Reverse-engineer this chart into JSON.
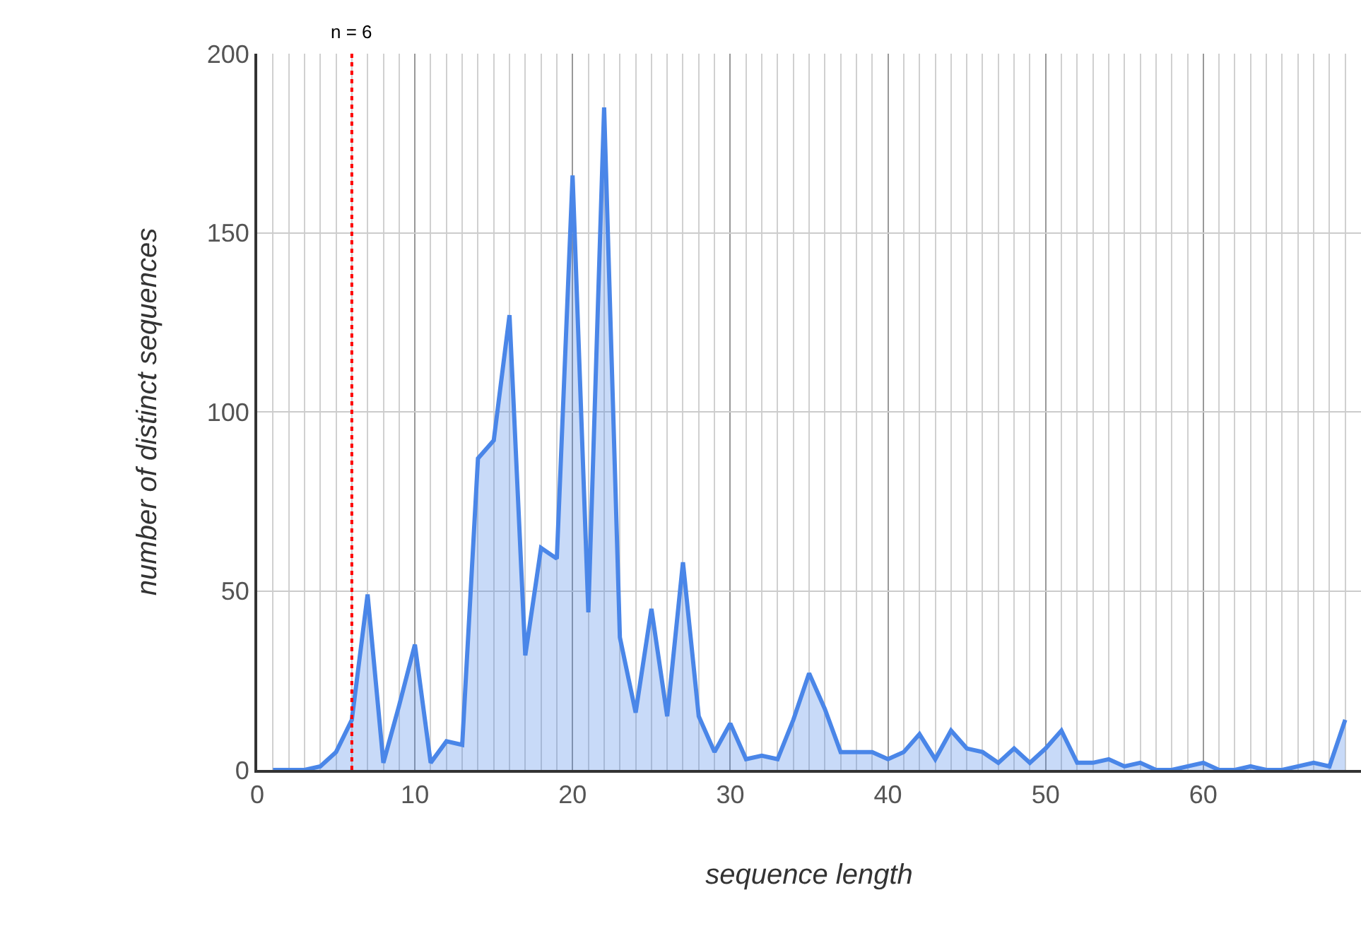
{
  "chart_data": {
    "type": "area",
    "xlabel": "sequence length",
    "ylabel": "number of distinct sequences",
    "x": [
      1,
      2,
      3,
      4,
      5,
      6,
      7,
      8,
      9,
      10,
      11,
      12,
      13,
      14,
      15,
      16,
      17,
      18,
      19,
      20,
      21,
      22,
      23,
      24,
      25,
      26,
      27,
      28,
      29,
      30,
      31,
      32,
      33,
      34,
      35,
      36,
      37,
      38,
      39,
      40,
      41,
      42,
      43,
      44,
      45,
      46,
      47,
      48,
      49,
      50,
      51,
      52,
      53,
      54,
      55,
      56,
      57,
      58,
      59,
      60,
      61,
      62,
      63,
      64,
      65,
      66,
      67,
      68,
      69
    ],
    "series": [
      {
        "color": "#4a86e8",
        "values": [
          0,
          0,
          0,
          1,
          5,
          14,
          49,
          2,
          18,
          35,
          2,
          8,
          7,
          87,
          92,
          127,
          32,
          62,
          59,
          166,
          44,
          185,
          37,
          16,
          45,
          15,
          58,
          15,
          5,
          13,
          3,
          4,
          3,
          14,
          27,
          17,
          5,
          5,
          5,
          3,
          5,
          10,
          3,
          11,
          6,
          5,
          2,
          6,
          2,
          6,
          11,
          2,
          2,
          3,
          1,
          2,
          0,
          0,
          1,
          2,
          0,
          0,
          1,
          0,
          0,
          1,
          2,
          1,
          14
        ]
      }
    ],
    "xlim": [
      0,
      70
    ],
    "ylim": [
      0,
      200
    ],
    "xticks": [
      0,
      10,
      20,
      30,
      40,
      50,
      60
    ],
    "yticks": [
      0,
      50,
      100,
      150,
      200
    ],
    "grid": true,
    "ref_lines": [
      {
        "axis": "x",
        "value": 6,
        "label": "n = 6",
        "color": "#ff0000",
        "line_style": "dotted"
      }
    ]
  }
}
